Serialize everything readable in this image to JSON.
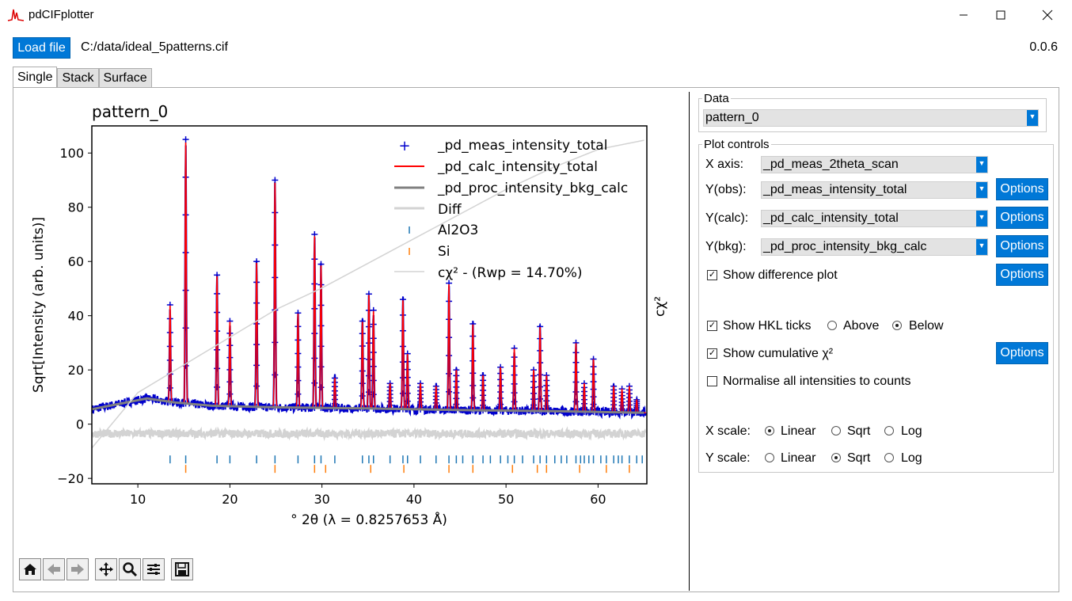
{
  "window": {
    "title": "pdCIFplotter",
    "minimize_icon": "minimize-icon",
    "maximize_icon": "maximize-icon",
    "close_icon": "close-icon"
  },
  "topbar": {
    "load_label": "Load file",
    "file_path": "C:/data/ideal_5patterns.cif",
    "version": "0.0.6"
  },
  "tabs": [
    {
      "label": "Single",
      "active": true
    },
    {
      "label": "Stack",
      "active": false
    },
    {
      "label": "Surface",
      "active": false
    }
  ],
  "plot": {
    "title": "pattern_0",
    "right_axis_label": "cχ²",
    "legend": [
      "_pd_meas_intensity_total",
      "_pd_calc_intensity_total",
      "_pd_proc_intensity_bkg_calc",
      "Diff",
      "Al2O3",
      "Si",
      "cχ² - (Rwp = 14.70%)"
    ]
  },
  "chart_data": {
    "type": "line",
    "title": "pattern_0",
    "xlabel": "° 2θ (λ = 0.8257653 Å)",
    "ylabel": "Sqrt[Intensity (arb. units)]",
    "y2label": "cχ²",
    "xlim": [
      5,
      65.3
    ],
    "ylim": [
      -22,
      110
    ],
    "x_ticks": [
      10,
      20,
      30,
      40,
      50,
      60
    ],
    "y_ticks": [
      -20,
      0,
      20,
      40,
      60,
      80,
      100
    ],
    "grid": false,
    "legend_placement": "top-right",
    "peaks": [
      {
        "x": 13.5,
        "y": 44
      },
      {
        "x": 15.2,
        "y": 105
      },
      {
        "x": 18.6,
        "y": 55
      },
      {
        "x": 20.0,
        "y": 38
      },
      {
        "x": 22.9,
        "y": 60
      },
      {
        "x": 24.9,
        "y": 90
      },
      {
        "x": 27.4,
        "y": 41
      },
      {
        "x": 29.2,
        "y": 70
      },
      {
        "x": 29.9,
        "y": 59
      },
      {
        "x": 31.4,
        "y": 17
      },
      {
        "x": 34.4,
        "y": 38
      },
      {
        "x": 35.1,
        "y": 48
      },
      {
        "x": 35.6,
        "y": 42
      },
      {
        "x": 37.4,
        "y": 15
      },
      {
        "x": 38.8,
        "y": 46
      },
      {
        "x": 39.3,
        "y": 26
      },
      {
        "x": 40.7,
        "y": 15
      },
      {
        "x": 42.4,
        "y": 14
      },
      {
        "x": 43.8,
        "y": 52
      },
      {
        "x": 44.6,
        "y": 20
      },
      {
        "x": 46.4,
        "y": 37
      },
      {
        "x": 47.5,
        "y": 18
      },
      {
        "x": 49.4,
        "y": 21
      },
      {
        "x": 50.9,
        "y": 28
      },
      {
        "x": 53.0,
        "y": 20
      },
      {
        "x": 53.7,
        "y": 36
      },
      {
        "x": 54.4,
        "y": 18
      },
      {
        "x": 57.6,
        "y": 30
      },
      {
        "x": 58.5,
        "y": 15
      },
      {
        "x": 59.5,
        "y": 24
      },
      {
        "x": 61.7,
        "y": 14
      },
      {
        "x": 62.6,
        "y": 13
      },
      {
        "x": 63.4,
        "y": 14
      },
      {
        "x": 64.2,
        "y": 9
      }
    ],
    "background": [
      {
        "x": 5,
        "y": 5.5
      },
      {
        "x": 8,
        "y": 7.5
      },
      {
        "x": 11,
        "y": 9.5
      },
      {
        "x": 14,
        "y": 8
      },
      {
        "x": 18,
        "y": 6.8
      },
      {
        "x": 25,
        "y": 6.2
      },
      {
        "x": 35,
        "y": 5.8
      },
      {
        "x": 45,
        "y": 5.2
      },
      {
        "x": 55,
        "y": 4.8
      },
      {
        "x": 65,
        "y": 4.2
      }
    ],
    "diff_offset": -3.5,
    "al2o3_ticks": [
      13.5,
      15.2,
      18.6,
      20.0,
      22.9,
      24.9,
      27.4,
      29.2,
      29.9,
      31.4,
      34.4,
      35.1,
      35.6,
      37.4,
      38.8,
      39.3,
      40.7,
      42.4,
      43.8,
      44.6,
      45.3,
      46.4,
      47.5,
      48.3,
      49.4,
      50.2,
      50.9,
      51.8,
      53.0,
      53.7,
      54.4,
      55.3,
      56.0,
      56.6,
      57.6,
      58.1,
      58.5,
      59.0,
      59.5,
      60.3,
      60.9,
      61.7,
      62.2,
      62.6,
      63.4,
      64.2,
      64.8
    ],
    "al2o3_tick_y": -13,
    "si_ticks": [
      15.2,
      24.9,
      29.2,
      30.4,
      35.3,
      38.9,
      43.8,
      46.4,
      50.7,
      53.4,
      54.4,
      58.0,
      60.9,
      63.4
    ],
    "si_tick_y": -16.5,
    "cchi2": [
      {
        "x": 5,
        "y": 0
      },
      {
        "x": 10,
        "y": 18
      },
      {
        "x": 15,
        "y": 27
      },
      {
        "x": 20,
        "y": 36
      },
      {
        "x": 25,
        "y": 45
      },
      {
        "x": 30,
        "y": 52
      },
      {
        "x": 35,
        "y": 60
      },
      {
        "x": 40,
        "y": 68
      },
      {
        "x": 45,
        "y": 76
      },
      {
        "x": 50,
        "y": 84
      },
      {
        "x": 55,
        "y": 91
      },
      {
        "x": 60,
        "y": 97
      },
      {
        "x": 65,
        "y": 100
      }
    ],
    "colors": {
      "obs": "#0000cc",
      "calc": "#ff0000",
      "bkg": "#808080",
      "diff": "#d3d3d3",
      "al2o3": "#1f77b4",
      "si": "#ff7f0e",
      "cchi2": "#d3d3d3"
    }
  },
  "toolbar": {
    "icons": [
      "home-icon",
      "back-icon",
      "forward-icon",
      "pan-icon",
      "zoom-icon",
      "configure-icon",
      "save-icon"
    ]
  },
  "controls": {
    "data_group": "Data",
    "data_select": "pattern_0",
    "plot_group": "Plot controls",
    "xaxis_label": "X axis:",
    "xaxis_value": "_pd_meas_2theta_scan",
    "yobs_label": "Y(obs):",
    "yobs_value": "_pd_meas_intensity_total",
    "ycalc_label": "Y(calc):",
    "ycalc_value": "_pd_calc_intensity_total",
    "ybkg_label": "Y(bkg):",
    "ybkg_value": "_pd_proc_intensity_bkg_calc",
    "options_label": "Options",
    "show_diff": "Show difference plot",
    "show_hkl": "Show HKL ticks",
    "above": "Above",
    "below": "Below",
    "show_cchi2": "Show cumulative χ²",
    "normalise": "Normalise all intensities to counts",
    "xscale_label": "X scale:",
    "yscale_label": "Y scale:",
    "linear": "Linear",
    "sqrt": "Sqrt",
    "log": "Log",
    "check_mark": "✓",
    "dropdown_arrow": "▼"
  }
}
